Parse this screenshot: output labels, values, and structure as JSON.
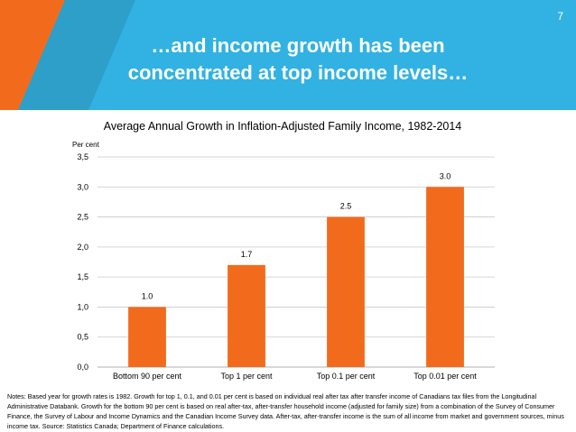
{
  "slide": {
    "title_line1": "…and income growth has been",
    "title_line2": "concentrated at top income levels…",
    "page_number": "7",
    "notes": "Notes: Based year for growth rates is 1982.  Growth for top 1, 0.1, and 0.01 per cent is based on individual real after tax after transfer income of Canadians tax files from the Longitudinal Administrative Databank. Growth for the bottom 90 per cent is based on real after-tax, after-transfer household income (adjusted for family size) from a combination of the Survey of Consumer Finance, the Survey of Labour and Income Dynamics and the Canadian Income Survey data. After-tax, after-transfer income is the sum of all income from market and government sources, minus income tax. Source: Statistics Canada; Department of Finance calculations.",
    "colors": {
      "header": "#31b2e2",
      "accent": "#f26b1d"
    }
  },
  "chart_data": {
    "type": "bar",
    "title": "Average Annual Growth in Inflation-Adjusted Family Income, 1982-2014",
    "ylabel": "Per cent",
    "xlabel": "",
    "categories": [
      "Bottom 90 per cent",
      "Top 1 per cent",
      "Top 0.1 per cent",
      "Top 0.01 per cent"
    ],
    "values": [
      1.0,
      1.7,
      2.5,
      3.0
    ],
    "data_labels": [
      "1.0",
      "1.7",
      "2.5",
      "3.0"
    ],
    "yticks": [
      0,
      0.5,
      1,
      1.5,
      2,
      2.5,
      3,
      3.5
    ],
    "ytick_labels": [
      "0,0",
      "0,5",
      "1,0",
      "1,5",
      "2,0",
      "2,5",
      "3,0",
      "3,5"
    ],
    "ylim": [
      0,
      3.5
    ],
    "grid": true,
    "bar_color": "#f26b1d"
  }
}
